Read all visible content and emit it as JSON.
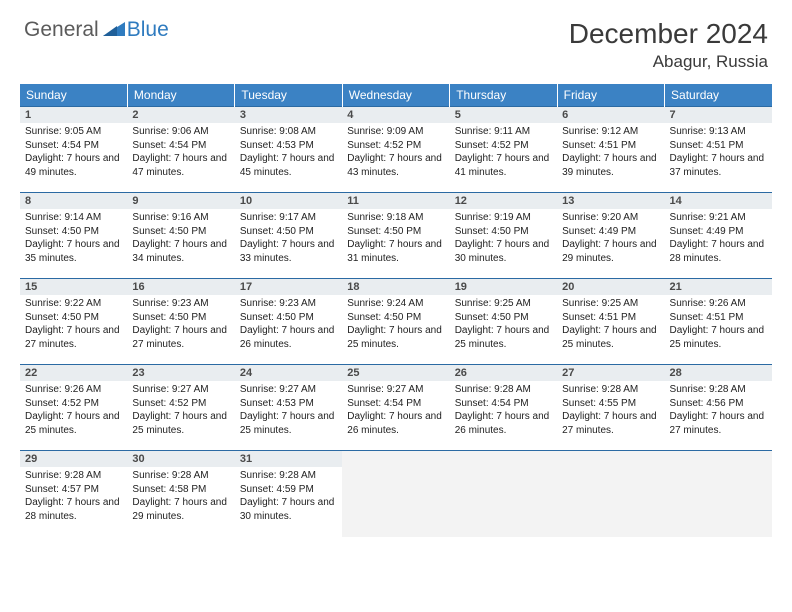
{
  "logo": {
    "part1": "General",
    "part2": "Blue"
  },
  "title": "December 2024",
  "location": "Abagur, Russia",
  "colors": {
    "header_bg": "#3b82c4",
    "header_text": "#ffffff",
    "daynum_bg": "#e9edf0",
    "row_border": "#2b6aa3",
    "empty_bg": "#f3f3f3",
    "logo_gray": "#5b5b5b",
    "logo_blue": "#2f7bbf"
  },
  "weekdays": [
    "Sunday",
    "Monday",
    "Tuesday",
    "Wednesday",
    "Thursday",
    "Friday",
    "Saturday"
  ],
  "weeks": [
    [
      {
        "n": "1",
        "sr": "9:05 AM",
        "ss": "4:54 PM",
        "dl": "7 hours and 49 minutes."
      },
      {
        "n": "2",
        "sr": "9:06 AM",
        "ss": "4:54 PM",
        "dl": "7 hours and 47 minutes."
      },
      {
        "n": "3",
        "sr": "9:08 AM",
        "ss": "4:53 PM",
        "dl": "7 hours and 45 minutes."
      },
      {
        "n": "4",
        "sr": "9:09 AM",
        "ss": "4:52 PM",
        "dl": "7 hours and 43 minutes."
      },
      {
        "n": "5",
        "sr": "9:11 AM",
        "ss": "4:52 PM",
        "dl": "7 hours and 41 minutes."
      },
      {
        "n": "6",
        "sr": "9:12 AM",
        "ss": "4:51 PM",
        "dl": "7 hours and 39 minutes."
      },
      {
        "n": "7",
        "sr": "9:13 AM",
        "ss": "4:51 PM",
        "dl": "7 hours and 37 minutes."
      }
    ],
    [
      {
        "n": "8",
        "sr": "9:14 AM",
        "ss": "4:50 PM",
        "dl": "7 hours and 35 minutes."
      },
      {
        "n": "9",
        "sr": "9:16 AM",
        "ss": "4:50 PM",
        "dl": "7 hours and 34 minutes."
      },
      {
        "n": "10",
        "sr": "9:17 AM",
        "ss": "4:50 PM",
        "dl": "7 hours and 33 minutes."
      },
      {
        "n": "11",
        "sr": "9:18 AM",
        "ss": "4:50 PM",
        "dl": "7 hours and 31 minutes."
      },
      {
        "n": "12",
        "sr": "9:19 AM",
        "ss": "4:50 PM",
        "dl": "7 hours and 30 minutes."
      },
      {
        "n": "13",
        "sr": "9:20 AM",
        "ss": "4:49 PM",
        "dl": "7 hours and 29 minutes."
      },
      {
        "n": "14",
        "sr": "9:21 AM",
        "ss": "4:49 PM",
        "dl": "7 hours and 28 minutes."
      }
    ],
    [
      {
        "n": "15",
        "sr": "9:22 AM",
        "ss": "4:50 PM",
        "dl": "7 hours and 27 minutes."
      },
      {
        "n": "16",
        "sr": "9:23 AM",
        "ss": "4:50 PM",
        "dl": "7 hours and 27 minutes."
      },
      {
        "n": "17",
        "sr": "9:23 AM",
        "ss": "4:50 PM",
        "dl": "7 hours and 26 minutes."
      },
      {
        "n": "18",
        "sr": "9:24 AM",
        "ss": "4:50 PM",
        "dl": "7 hours and 25 minutes."
      },
      {
        "n": "19",
        "sr": "9:25 AM",
        "ss": "4:50 PM",
        "dl": "7 hours and 25 minutes."
      },
      {
        "n": "20",
        "sr": "9:25 AM",
        "ss": "4:51 PM",
        "dl": "7 hours and 25 minutes."
      },
      {
        "n": "21",
        "sr": "9:26 AM",
        "ss": "4:51 PM",
        "dl": "7 hours and 25 minutes."
      }
    ],
    [
      {
        "n": "22",
        "sr": "9:26 AM",
        "ss": "4:52 PM",
        "dl": "7 hours and 25 minutes."
      },
      {
        "n": "23",
        "sr": "9:27 AM",
        "ss": "4:52 PM",
        "dl": "7 hours and 25 minutes."
      },
      {
        "n": "24",
        "sr": "9:27 AM",
        "ss": "4:53 PM",
        "dl": "7 hours and 25 minutes."
      },
      {
        "n": "25",
        "sr": "9:27 AM",
        "ss": "4:54 PM",
        "dl": "7 hours and 26 minutes."
      },
      {
        "n": "26",
        "sr": "9:28 AM",
        "ss": "4:54 PM",
        "dl": "7 hours and 26 minutes."
      },
      {
        "n": "27",
        "sr": "9:28 AM",
        "ss": "4:55 PM",
        "dl": "7 hours and 27 minutes."
      },
      {
        "n": "28",
        "sr": "9:28 AM",
        "ss": "4:56 PM",
        "dl": "7 hours and 27 minutes."
      }
    ],
    [
      {
        "n": "29",
        "sr": "9:28 AM",
        "ss": "4:57 PM",
        "dl": "7 hours and 28 minutes."
      },
      {
        "n": "30",
        "sr": "9:28 AM",
        "ss": "4:58 PM",
        "dl": "7 hours and 29 minutes."
      },
      {
        "n": "31",
        "sr": "9:28 AM",
        "ss": "4:59 PM",
        "dl": "7 hours and 30 minutes."
      },
      null,
      null,
      null,
      null
    ]
  ],
  "labels": {
    "sunrise": "Sunrise:",
    "sunset": "Sunset:",
    "daylight": "Daylight:"
  }
}
